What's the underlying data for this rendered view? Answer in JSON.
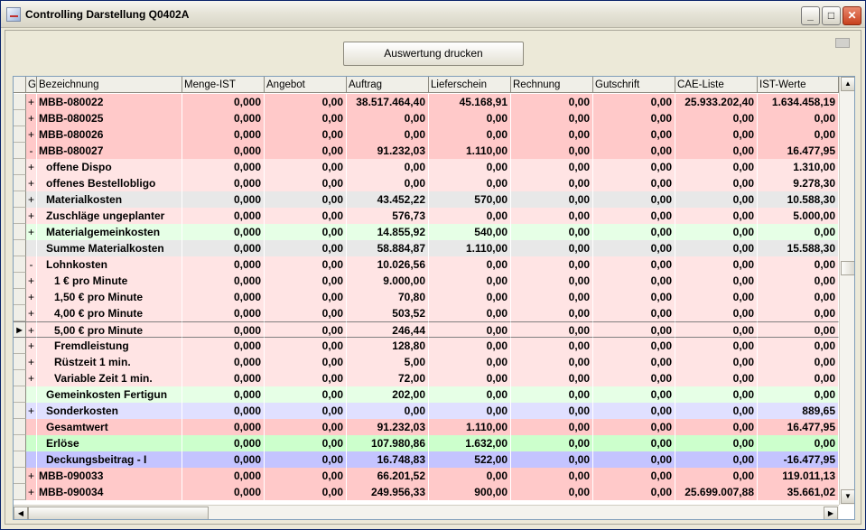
{
  "window": {
    "title": "Controlling Darstellung Q0402A",
    "minimize": "_",
    "maximize": "□",
    "close": "✕"
  },
  "toolbar": {
    "print_label": "Auswertung drucken"
  },
  "grid": {
    "columns": [
      "G",
      "Bezeichnung",
      "Menge-IST",
      "Angebot",
      "Auftrag",
      "Lieferschein",
      "Rechnung",
      "Gutschrift",
      "CAE-Liste",
      "IST-Werte"
    ],
    "colors": {
      "red": "#ffc9c9",
      "lightred": "#ffe4e4",
      "grey": "#e8e8e8",
      "green": "#ccffcc",
      "lightgreen": "#e6ffe6",
      "lavender": "#e0e0ff",
      "blue": "#c4c4ff"
    },
    "rows": [
      {
        "g": "+",
        "name": "MBB-080022",
        "indent": 0,
        "bg": "red",
        "values": [
          "0,000",
          "0,00",
          "38.517.464,40",
          "45.168,91",
          "0,00",
          "0,00",
          "25.933.202,40",
          "1.634.458,19"
        ]
      },
      {
        "g": "+",
        "name": "MBB-080025",
        "indent": 0,
        "bg": "red",
        "values": [
          "0,000",
          "0,00",
          "0,00",
          "0,00",
          "0,00",
          "0,00",
          "0,00",
          "0,00"
        ]
      },
      {
        "g": "+",
        "name": "MBB-080026",
        "indent": 0,
        "bg": "red",
        "values": [
          "0,000",
          "0,00",
          "0,00",
          "0,00",
          "0,00",
          "0,00",
          "0,00",
          "0,00"
        ]
      },
      {
        "g": "-",
        "name": "MBB-080027",
        "indent": 0,
        "bg": "red",
        "values": [
          "0,000",
          "0,00",
          "91.232,03",
          "1.110,00",
          "0,00",
          "0,00",
          "0,00",
          "16.477,95"
        ]
      },
      {
        "g": "+",
        "name": "offene Dispo",
        "indent": 1,
        "bg": "lightred",
        "values": [
          "0,000",
          "0,00",
          "0,00",
          "0,00",
          "0,00",
          "0,00",
          "0,00",
          "1.310,00"
        ]
      },
      {
        "g": "+",
        "name": "offenes Bestellobligo",
        "indent": 1,
        "bg": "lightred",
        "values": [
          "0,000",
          "0,00",
          "0,00",
          "0,00",
          "0,00",
          "0,00",
          "0,00",
          "9.278,30"
        ]
      },
      {
        "g": "+",
        "name": "Materialkosten",
        "indent": 1,
        "bg": "grey",
        "values": [
          "0,000",
          "0,00",
          "43.452,22",
          "570,00",
          "0,00",
          "0,00",
          "0,00",
          "10.588,30"
        ]
      },
      {
        "g": "+",
        "name": "Zuschläge ungeplanter",
        "indent": 1,
        "bg": "lightred",
        "values": [
          "0,000",
          "0,00",
          "576,73",
          "0,00",
          "0,00",
          "0,00",
          "0,00",
          "5.000,00"
        ]
      },
      {
        "g": "+",
        "name": "Materialgemeinkosten",
        "indent": 1,
        "bg": "lightgreen",
        "values": [
          "0,000",
          "0,00",
          "14.855,92",
          "540,00",
          "0,00",
          "0,00",
          "0,00",
          "0,00"
        ]
      },
      {
        "g": "",
        "name": "Summe Materialkosten",
        "indent": 1,
        "bg": "grey",
        "values": [
          "0,000",
          "0,00",
          "58.884,87",
          "1.110,00",
          "0,00",
          "0,00",
          "0,00",
          "15.588,30"
        ]
      },
      {
        "g": "-",
        "name": "Lohnkosten",
        "indent": 1,
        "bg": "lightred",
        "values": [
          "0,000",
          "0,00",
          "10.026,56",
          "0,00",
          "0,00",
          "0,00",
          "0,00",
          "0,00"
        ]
      },
      {
        "g": "+",
        "name": "1 € pro Minute",
        "indent": 2,
        "bg": "lightred",
        "values": [
          "0,000",
          "0,00",
          "9.000,00",
          "0,00",
          "0,00",
          "0,00",
          "0,00",
          "0,00"
        ]
      },
      {
        "g": "+",
        "name": "1,50 € pro Minute",
        "indent": 2,
        "bg": "lightred",
        "values": [
          "0,000",
          "0,00",
          "70,80",
          "0,00",
          "0,00",
          "0,00",
          "0,00",
          "0,00"
        ]
      },
      {
        "g": "+",
        "name": "4,00 € pro Minute",
        "indent": 2,
        "bg": "lightred",
        "values": [
          "0,000",
          "0,00",
          "503,52",
          "0,00",
          "0,00",
          "0,00",
          "0,00",
          "0,00"
        ]
      },
      {
        "g": "+",
        "name": "5,00 € pro Minute",
        "indent": 2,
        "bg": "lightred",
        "current": true,
        "values": [
          "0,000",
          "0,00",
          "246,44",
          "0,00",
          "0,00",
          "0,00",
          "0,00",
          "0,00"
        ]
      },
      {
        "g": "+",
        "name": "Fremdleistung",
        "indent": 2,
        "bg": "lightred",
        "values": [
          "0,000",
          "0,00",
          "128,80",
          "0,00",
          "0,00",
          "0,00",
          "0,00",
          "0,00"
        ]
      },
      {
        "g": "+",
        "name": "Rüstzeit 1 min.",
        "indent": 2,
        "bg": "lightred",
        "values": [
          "0,000",
          "0,00",
          "5,00",
          "0,00",
          "0,00",
          "0,00",
          "0,00",
          "0,00"
        ]
      },
      {
        "g": "+",
        "name": "Variable Zeit 1 min.",
        "indent": 2,
        "bg": "lightred",
        "values": [
          "0,000",
          "0,00",
          "72,00",
          "0,00",
          "0,00",
          "0,00",
          "0,00",
          "0,00"
        ]
      },
      {
        "g": "",
        "name": "Gemeinkosten Fertigun",
        "indent": 1,
        "bg": "lightgreen",
        "values": [
          "0,000",
          "0,00",
          "202,00",
          "0,00",
          "0,00",
          "0,00",
          "0,00",
          "0,00"
        ]
      },
      {
        "g": "+",
        "name": "Sonderkosten",
        "indent": 1,
        "bg": "lavender",
        "values": [
          "0,000",
          "0,00",
          "0,00",
          "0,00",
          "0,00",
          "0,00",
          "0,00",
          "889,65"
        ]
      },
      {
        "g": "",
        "name": "Gesamtwert",
        "indent": 1,
        "bg": "red",
        "values": [
          "0,000",
          "0,00",
          "91.232,03",
          "1.110,00",
          "0,00",
          "0,00",
          "0,00",
          "16.477,95"
        ]
      },
      {
        "g": "",
        "name": "Erlöse",
        "indent": 1,
        "bg": "green",
        "values": [
          "0,000",
          "0,00",
          "107.980,86",
          "1.632,00",
          "0,00",
          "0,00",
          "0,00",
          "0,00"
        ]
      },
      {
        "g": "",
        "name": "Deckungsbeitrag - I",
        "indent": 1,
        "bg": "blue",
        "values": [
          "0,000",
          "0,00",
          "16.748,83",
          "522,00",
          "0,00",
          "0,00",
          "0,00",
          "-16.477,95"
        ]
      },
      {
        "g": "+",
        "name": "MBB-090033",
        "indent": 0,
        "bg": "red",
        "values": [
          "0,000",
          "0,00",
          "66.201,52",
          "0,00",
          "0,00",
          "0,00",
          "0,00",
          "119.011,13"
        ]
      },
      {
        "g": "+",
        "name": "MBB-090034",
        "indent": 0,
        "bg": "red",
        "values": [
          "0,000",
          "0,00",
          "249.956,33",
          "900,00",
          "0,00",
          "0,00",
          "25.699.007,88",
          "35.661,02"
        ]
      }
    ]
  }
}
